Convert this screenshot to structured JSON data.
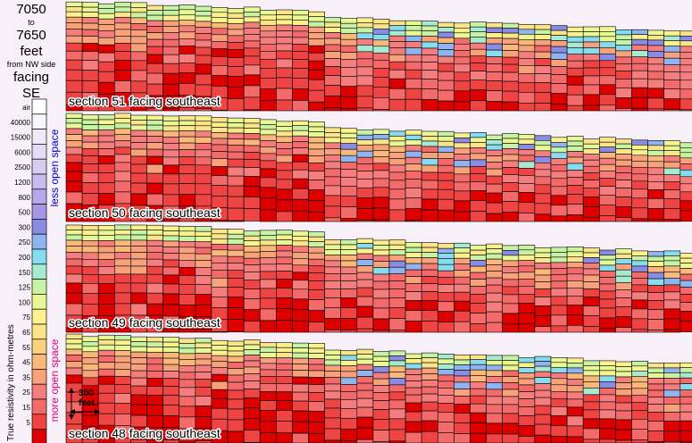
{
  "title": {
    "line1": "7050",
    "line2": "to",
    "line3": "7650",
    "line4": "feet",
    "line5": "from NW side",
    "line6": "facing",
    "line7": "SE"
  },
  "legend": {
    "axis_label": "True resistivity in ohm-metres",
    "less_label": "less open space",
    "more_label": "more open space",
    "less_color": "#0000cc",
    "more_color": "#e0007f",
    "entries": [
      {
        "label": "air",
        "color": "#ffffff"
      },
      {
        "label": "40000",
        "color": "#f6f4fc"
      },
      {
        "label": "15000",
        "color": "#eeeaf9"
      },
      {
        "label": "6000",
        "color": "#e3ddf6"
      },
      {
        "label": "2500",
        "color": "#d6cdf1"
      },
      {
        "label": "1200",
        "color": "#c6bcee"
      },
      {
        "label": "800",
        "color": "#b5a9ea"
      },
      {
        "label": "500",
        "color": "#a497e6"
      },
      {
        "label": "300",
        "color": "#8a8be4"
      },
      {
        "label": "250",
        "color": "#8fb4f0"
      },
      {
        "label": "200",
        "color": "#88dcf0"
      },
      {
        "label": "150",
        "color": "#a8ead0"
      },
      {
        "label": "125",
        "color": "#c8f2a4"
      },
      {
        "label": "100",
        "color": "#e9f795"
      },
      {
        "label": "75",
        "color": "#fbf28d"
      },
      {
        "label": "65",
        "color": "#fbe489"
      },
      {
        "label": "55",
        "color": "#fbd17e"
      },
      {
        "label": "45",
        "color": "#fab97a"
      },
      {
        "label": "35",
        "color": "#f7a27a"
      },
      {
        "label": "25",
        "color": "#f47d7d"
      },
      {
        "label": "15",
        "color": "#f26a6a"
      },
      {
        "label": "5",
        "color": "#ee4444"
      },
      {
        "label": "",
        "color": "#dd0000"
      }
    ]
  },
  "scale_bar": {
    "value": "300",
    "unit": "feet"
  },
  "sections": [
    {
      "label": "section 51 facing southeast"
    },
    {
      "label": "section 50 facing southeast"
    },
    {
      "label": "section 49 facing southeast"
    },
    {
      "label": "section 48 facing southeast"
    }
  ]
}
